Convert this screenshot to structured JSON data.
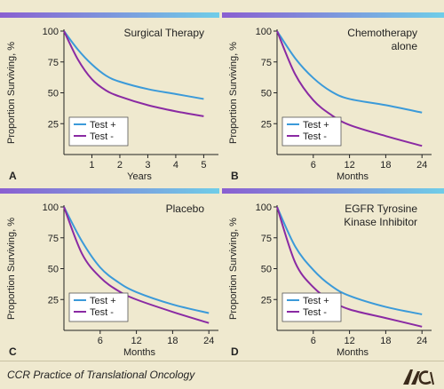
{
  "colors": {
    "background": "#efe9cf",
    "test_pos": "#3b9ad9",
    "test_neg": "#8a2aa3",
    "header_bar_start": "#8a5fd1",
    "header_bar_end": "#6fcde8"
  },
  "footer": {
    "caption": "CCR Practice of Translational Oncology",
    "logo_text": "AACR"
  },
  "chart_data": [
    {
      "type": "line",
      "panel_letter": "A",
      "title_lines": [
        "Surgical Therapy"
      ],
      "xlabel": "Years",
      "ylabel": "Proportion Surviving, %",
      "xlim": [
        0,
        5.4
      ],
      "ylim": [
        0,
        100
      ],
      "xticks": [
        1,
        2,
        3,
        4,
        5
      ],
      "yticks": [
        25,
        50,
        75,
        100
      ],
      "legend": "bottom-left",
      "series": [
        {
          "name": "Test +",
          "color_key": "test_pos",
          "x": [
            0,
            0.5,
            1,
            1.5,
            2,
            3,
            4,
            5
          ],
          "y": [
            100,
            85,
            73,
            64,
            59,
            53,
            49,
            45
          ]
        },
        {
          "name": "Test -",
          "color_key": "test_neg",
          "x": [
            0,
            0.5,
            1,
            1.5,
            2,
            3,
            4,
            5
          ],
          "y": [
            100,
            77,
            61,
            52,
            47,
            40,
            35,
            31
          ]
        }
      ]
    },
    {
      "type": "line",
      "panel_letter": "B",
      "title_lines": [
        "Chemotherapy",
        "alone"
      ],
      "xlabel": "Months",
      "ylabel": "Proportion Surviving, %",
      "xlim": [
        0,
        25
      ],
      "ylim": [
        0,
        100
      ],
      "xticks": [
        6,
        12,
        18,
        24
      ],
      "yticks": [
        25,
        50,
        75,
        100
      ],
      "legend": "bottom-left",
      "series": [
        {
          "name": "Test +",
          "color_key": "test_pos",
          "x": [
            0,
            3,
            6,
            9,
            12,
            18,
            24
          ],
          "y": [
            100,
            78,
            62,
            51,
            45,
            40,
            34
          ]
        },
        {
          "name": "Test -",
          "color_key": "test_neg",
          "x": [
            0,
            3,
            6,
            9,
            12,
            18,
            24
          ],
          "y": [
            100,
            65,
            44,
            32,
            24,
            15,
            7
          ]
        }
      ]
    },
    {
      "type": "line",
      "panel_letter": "C",
      "title_lines": [
        "Placebo"
      ],
      "xlabel": "Months",
      "ylabel": "Proportion Surviving, %",
      "xlim": [
        0,
        25
      ],
      "ylim": [
        0,
        100
      ],
      "xticks": [
        6,
        12,
        18,
        24
      ],
      "yticks": [
        25,
        50,
        75,
        100
      ],
      "legend": "bottom-left",
      "series": [
        {
          "name": "Test +",
          "color_key": "test_pos",
          "x": [
            0,
            3,
            6,
            9,
            12,
            18,
            24
          ],
          "y": [
            100,
            72,
            51,
            39,
            31,
            21,
            14
          ]
        },
        {
          "name": "Test -",
          "color_key": "test_neg",
          "x": [
            0,
            3,
            6,
            9,
            12,
            18,
            24
          ],
          "y": [
            100,
            62,
            43,
            32,
            25,
            15,
            6
          ]
        }
      ]
    },
    {
      "type": "line",
      "panel_letter": "D",
      "title_lines": [
        "EGFR Tyrosine",
        "Kinase Inhibitor"
      ],
      "xlabel": "Months",
      "ylabel": "Proportion Surviving, %",
      "xlim": [
        0,
        25
      ],
      "ylim": [
        0,
        100
      ],
      "xticks": [
        6,
        12,
        18,
        24
      ],
      "yticks": [
        25,
        50,
        75,
        100
      ],
      "legend": "bottom-left",
      "series": [
        {
          "name": "Test +",
          "color_key": "test_pos",
          "x": [
            0,
            3,
            6,
            9,
            12,
            18,
            24
          ],
          "y": [
            100,
            68,
            49,
            36,
            28,
            19,
            13
          ]
        },
        {
          "name": "Test -",
          "color_key": "test_neg",
          "x": [
            0,
            3,
            6,
            9,
            12,
            18,
            24
          ],
          "y": [
            100,
            55,
            35,
            24,
            17,
            10,
            3
          ]
        }
      ]
    }
  ]
}
